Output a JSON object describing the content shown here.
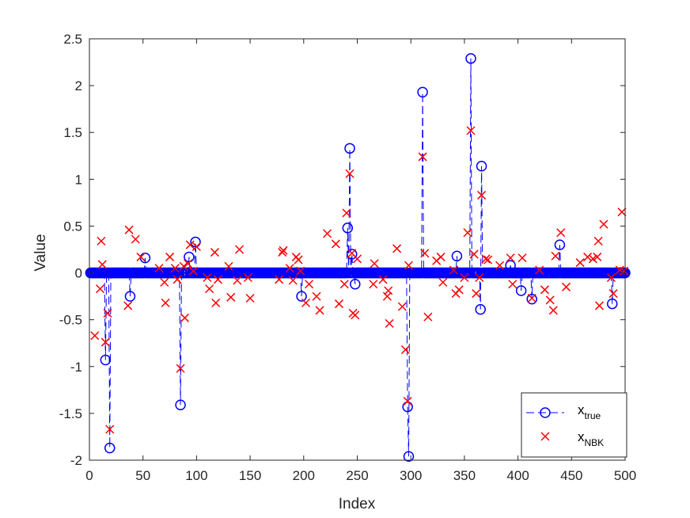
{
  "chart_data": {
    "type": "scatter",
    "title": "",
    "xlabel": "Index",
    "ylabel": "Value",
    "xlim": [
      0,
      500
    ],
    "ylim": [
      -2,
      2.5
    ],
    "xticks": [
      "0",
      "50",
      "100",
      "150",
      "200",
      "250",
      "300",
      "350",
      "400",
      "450",
      "500"
    ],
    "yticks": [
      "-2",
      "-1.5",
      "-1",
      "-0.5",
      "0",
      "0.5",
      "1",
      "1.5",
      "2",
      "2.5"
    ],
    "grid": false,
    "legend_position": "bottom-right",
    "n": 500,
    "series": [
      {
        "name": "x",
        "subscript": "true",
        "style": "dashed line with circle markers",
        "color": "#0000ff",
        "nonzero": [
          {
            "x": 15,
            "y": -0.93
          },
          {
            "x": 19,
            "y": -1.87
          },
          {
            "x": 38,
            "y": -0.25
          },
          {
            "x": 52,
            "y": 0.16
          },
          {
            "x": 85,
            "y": -1.41
          },
          {
            "x": 93,
            "y": 0.17
          },
          {
            "x": 99,
            "y": 0.33
          },
          {
            "x": 198,
            "y": -0.25
          },
          {
            "x": 241,
            "y": 0.48
          },
          {
            "x": 243,
            "y": 1.33
          },
          {
            "x": 245,
            "y": 0.2
          },
          {
            "x": 248,
            "y": -0.12
          },
          {
            "x": 297,
            "y": -1.43
          },
          {
            "x": 298,
            "y": -1.96
          },
          {
            "x": 311,
            "y": 1.93
          },
          {
            "x": 343,
            "y": 0.18
          },
          {
            "x": 356,
            "y": 2.29
          },
          {
            "x": 365,
            "y": -0.39
          },
          {
            "x": 366,
            "y": 1.14
          },
          {
            "x": 393,
            "y": 0.08
          },
          {
            "x": 403,
            "y": -0.19
          },
          {
            "x": 413,
            "y": -0.28
          },
          {
            "x": 439,
            "y": 0.3
          },
          {
            "x": 488,
            "y": -0.33
          }
        ]
      },
      {
        "name": "x",
        "subscript": "NBK",
        "style": "x markers",
        "color": "#ff0000",
        "points": [
          {
            "x": 5,
            "y": -0.67
          },
          {
            "x": 10,
            "y": -0.17
          },
          {
            "x": 11,
            "y": 0.34
          },
          {
            "x": 12,
            "y": 0.09
          },
          {
            "x": 15,
            "y": -0.74
          },
          {
            "x": 17,
            "y": -0.43
          },
          {
            "x": 19,
            "y": -1.67
          },
          {
            "x": 36,
            "y": -0.35
          },
          {
            "x": 37,
            "y": 0.46
          },
          {
            "x": 43,
            "y": 0.36
          },
          {
            "x": 48,
            "y": 0.17
          },
          {
            "x": 65,
            "y": 0.05
          },
          {
            "x": 70,
            "y": -0.1
          },
          {
            "x": 71,
            "y": -0.32
          },
          {
            "x": 75,
            "y": 0.17
          },
          {
            "x": 80,
            "y": 0.05
          },
          {
            "x": 82,
            "y": -0.07
          },
          {
            "x": 85,
            "y": -1.02
          },
          {
            "x": 88,
            "y": 0.07
          },
          {
            "x": 89,
            "y": -0.48
          },
          {
            "x": 92,
            "y": 0.1
          },
          {
            "x": 94,
            "y": 0.3
          },
          {
            "x": 97,
            "y": 0.02
          },
          {
            "x": 100,
            "y": 0.28
          },
          {
            "x": 110,
            "y": -0.05
          },
          {
            "x": 112,
            "y": -0.17
          },
          {
            "x": 117,
            "y": 0.22
          },
          {
            "x": 118,
            "y": -0.32
          },
          {
            "x": 120,
            "y": -0.07
          },
          {
            "x": 130,
            "y": 0.07
          },
          {
            "x": 132,
            "y": -0.26
          },
          {
            "x": 138,
            "y": -0.08
          },
          {
            "x": 140,
            "y": 0.25
          },
          {
            "x": 148,
            "y": -0.05
          },
          {
            "x": 150,
            "y": -0.27
          },
          {
            "x": 177,
            "y": -0.07
          },
          {
            "x": 180,
            "y": 0.22
          },
          {
            "x": 181,
            "y": 0.24
          },
          {
            "x": 187,
            "y": 0.05
          },
          {
            "x": 190,
            "y": -0.08
          },
          {
            "x": 193,
            "y": 0.17
          },
          {
            "x": 195,
            "y": 0.14
          },
          {
            "x": 197,
            "y": 0.02
          },
          {
            "x": 202,
            "y": -0.32
          },
          {
            "x": 205,
            "y": -0.12
          },
          {
            "x": 212,
            "y": -0.25
          },
          {
            "x": 215,
            "y": -0.4
          },
          {
            "x": 222,
            "y": 0.42
          },
          {
            "x": 230,
            "y": 0.31
          },
          {
            "x": 233,
            "y": -0.33
          },
          {
            "x": 238,
            "y": -0.12
          },
          {
            "x": 240,
            "y": 0.64
          },
          {
            "x": 243,
            "y": 1.06
          },
          {
            "x": 245,
            "y": 0.21
          },
          {
            "x": 246,
            "y": -0.43
          },
          {
            "x": 248,
            "y": -0.45
          },
          {
            "x": 250,
            "y": 0.15
          },
          {
            "x": 265,
            "y": -0.12
          },
          {
            "x": 266,
            "y": 0.1
          },
          {
            "x": 274,
            "y": -0.07
          },
          {
            "x": 278,
            "y": -0.25
          },
          {
            "x": 279,
            "y": -0.19
          },
          {
            "x": 280,
            "y": -0.54
          },
          {
            "x": 287,
            "y": 0.26
          },
          {
            "x": 292,
            "y": -0.36
          },
          {
            "x": 295,
            "y": -0.82
          },
          {
            "x": 297,
            "y": -1.37
          },
          {
            "x": 298,
            "y": 0.08
          },
          {
            "x": 311,
            "y": 1.24
          },
          {
            "x": 313,
            "y": 0.21
          },
          {
            "x": 316,
            "y": -0.47
          },
          {
            "x": 324,
            "y": 0.13
          },
          {
            "x": 328,
            "y": 0.17
          },
          {
            "x": 330,
            "y": -0.1
          },
          {
            "x": 340,
            "y": 0.03
          },
          {
            "x": 342,
            "y": -0.22
          },
          {
            "x": 345,
            "y": -0.18
          },
          {
            "x": 350,
            "y": -0.05
          },
          {
            "x": 353,
            "y": 0.43
          },
          {
            "x": 356,
            "y": 1.52
          },
          {
            "x": 359,
            "y": 0.2
          },
          {
            "x": 361,
            "y": -0.22
          },
          {
            "x": 364,
            "y": -0.05
          },
          {
            "x": 366,
            "y": 0.83
          },
          {
            "x": 370,
            "y": 0.15
          },
          {
            "x": 372,
            "y": 0.14
          },
          {
            "x": 383,
            "y": 0.08
          },
          {
            "x": 393,
            "y": 0.16
          },
          {
            "x": 395,
            "y": -0.12
          },
          {
            "x": 404,
            "y": 0.16
          },
          {
            "x": 413,
            "y": -0.27
          },
          {
            "x": 420,
            "y": 0.03
          },
          {
            "x": 425,
            "y": -0.18
          },
          {
            "x": 430,
            "y": -0.29
          },
          {
            "x": 433,
            "y": -0.4
          },
          {
            "x": 435,
            "y": 0.18
          },
          {
            "x": 440,
            "y": 0.43
          },
          {
            "x": 445,
            "y": -0.15
          },
          {
            "x": 458,
            "y": 0.11
          },
          {
            "x": 465,
            "y": 0.17
          },
          {
            "x": 470,
            "y": 0.15
          },
          {
            "x": 474,
            "y": 0.17
          },
          {
            "x": 475,
            "y": 0.34
          },
          {
            "x": 476,
            "y": -0.35
          },
          {
            "x": 480,
            "y": 0.52
          },
          {
            "x": 487,
            "y": -0.05
          },
          {
            "x": 489,
            "y": -0.22
          },
          {
            "x": 495,
            "y": 0.03
          },
          {
            "x": 497,
            "y": 0.65
          },
          {
            "x": 499,
            "y": 0.02
          }
        ]
      }
    ]
  }
}
